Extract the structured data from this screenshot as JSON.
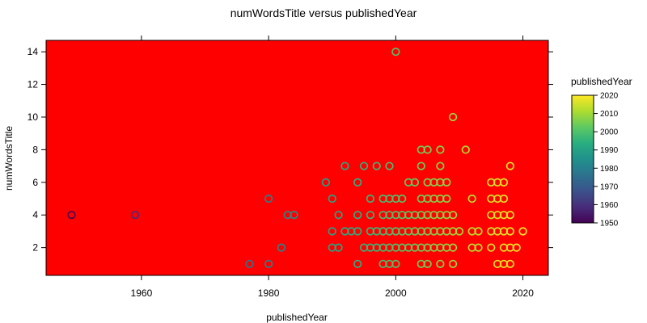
{
  "chart_data": {
    "type": "scatter",
    "title": "numWordsTitle versus publishedYear",
    "xlabel": "publishedYear",
    "ylabel": "numWordsTitle",
    "xlim": [
      1945,
      2024
    ],
    "ylim": [
      0.3,
      14.7
    ],
    "x_ticks": [
      1960,
      1980,
      2000,
      2020
    ],
    "y_ticks": [
      2,
      4,
      6,
      8,
      10,
      12,
      14
    ],
    "panel_background": "#ff0000",
    "grid": false,
    "legend_position": "right",
    "colorbar": {
      "title": "publishedYear",
      "min": 1950,
      "max": 2020,
      "ticks": [
        1950,
        1960,
        1970,
        1980,
        1990,
        2000,
        2010,
        2020
      ],
      "palette": "viridis",
      "stops": [
        "#440154",
        "#472d7b",
        "#3b528b",
        "#2c728e",
        "#21918c",
        "#28ae80",
        "#5ec962",
        "#addc30",
        "#fde725"
      ]
    },
    "points": [
      [
        1949,
        4
      ],
      [
        1959,
        4
      ],
      [
        1977,
        1
      ],
      [
        1980,
        1
      ],
      [
        1980,
        5
      ],
      [
        1982,
        2
      ],
      [
        1983,
        4
      ],
      [
        1984,
        4
      ],
      [
        1989,
        6
      ],
      [
        1990,
        2
      ],
      [
        1990,
        3
      ],
      [
        1990,
        5
      ],
      [
        1991,
        2
      ],
      [
        1991,
        4
      ],
      [
        1992,
        3
      ],
      [
        1992,
        7
      ],
      [
        1993,
        3
      ],
      [
        1994,
        1
      ],
      [
        1994,
        3
      ],
      [
        1994,
        4
      ],
      [
        1994,
        6
      ],
      [
        1995,
        2
      ],
      [
        1995,
        7
      ],
      [
        1996,
        2
      ],
      [
        1996,
        3
      ],
      [
        1996,
        4
      ],
      [
        1996,
        5
      ],
      [
        1997,
        2
      ],
      [
        1997,
        3
      ],
      [
        1997,
        7
      ],
      [
        1998,
        1
      ],
      [
        1998,
        2
      ],
      [
        1998,
        3
      ],
      [
        1998,
        4
      ],
      [
        1998,
        5
      ],
      [
        1999,
        1
      ],
      [
        1999,
        2
      ],
      [
        1999,
        3
      ],
      [
        1999,
        4
      ],
      [
        1999,
        5
      ],
      [
        1999,
        7
      ],
      [
        2000,
        1
      ],
      [
        2000,
        2
      ],
      [
        2000,
        3
      ],
      [
        2000,
        4
      ],
      [
        2000,
        5
      ],
      [
        2000,
        14
      ],
      [
        2001,
        2
      ],
      [
        2001,
        3
      ],
      [
        2001,
        4
      ],
      [
        2001,
        5
      ],
      [
        2002,
        2
      ],
      [
        2002,
        3
      ],
      [
        2002,
        4
      ],
      [
        2002,
        6
      ],
      [
        2003,
        2
      ],
      [
        2003,
        3
      ],
      [
        2003,
        4
      ],
      [
        2003,
        6
      ],
      [
        2004,
        1
      ],
      [
        2004,
        2
      ],
      [
        2004,
        3
      ],
      [
        2004,
        4
      ],
      [
        2004,
        5
      ],
      [
        2004,
        7
      ],
      [
        2004,
        8
      ],
      [
        2005,
        1
      ],
      [
        2005,
        2
      ],
      [
        2005,
        3
      ],
      [
        2005,
        4
      ],
      [
        2005,
        5
      ],
      [
        2005,
        6
      ],
      [
        2005,
        8
      ],
      [
        2006,
        2
      ],
      [
        2006,
        3
      ],
      [
        2006,
        4
      ],
      [
        2006,
        5
      ],
      [
        2006,
        6
      ],
      [
        2007,
        1
      ],
      [
        2007,
        2
      ],
      [
        2007,
        3
      ],
      [
        2007,
        4
      ],
      [
        2007,
        5
      ],
      [
        2007,
        6
      ],
      [
        2007,
        7
      ],
      [
        2007,
        8
      ],
      [
        2008,
        2
      ],
      [
        2008,
        3
      ],
      [
        2008,
        4
      ],
      [
        2008,
        5
      ],
      [
        2008,
        6
      ],
      [
        2009,
        1
      ],
      [
        2009,
        2
      ],
      [
        2009,
        3
      ],
      [
        2009,
        4
      ],
      [
        2009,
        10
      ],
      [
        2010,
        3
      ],
      [
        2011,
        8
      ],
      [
        2012,
        2
      ],
      [
        2012,
        3
      ],
      [
        2012,
        5
      ],
      [
        2013,
        2
      ],
      [
        2013,
        3
      ],
      [
        2015,
        2
      ],
      [
        2015,
        3
      ],
      [
        2015,
        4
      ],
      [
        2015,
        5
      ],
      [
        2015,
        6
      ],
      [
        2016,
        1
      ],
      [
        2016,
        3
      ],
      [
        2016,
        4
      ],
      [
        2016,
        5
      ],
      [
        2016,
        6
      ],
      [
        2017,
        1
      ],
      [
        2017,
        2
      ],
      [
        2017,
        3
      ],
      [
        2017,
        4
      ],
      [
        2017,
        5
      ],
      [
        2017,
        6
      ],
      [
        2018,
        1
      ],
      [
        2018,
        2
      ],
      [
        2018,
        3
      ],
      [
        2018,
        4
      ],
      [
        2018,
        7
      ],
      [
        2019,
        2
      ],
      [
        2020,
        3
      ]
    ]
  }
}
